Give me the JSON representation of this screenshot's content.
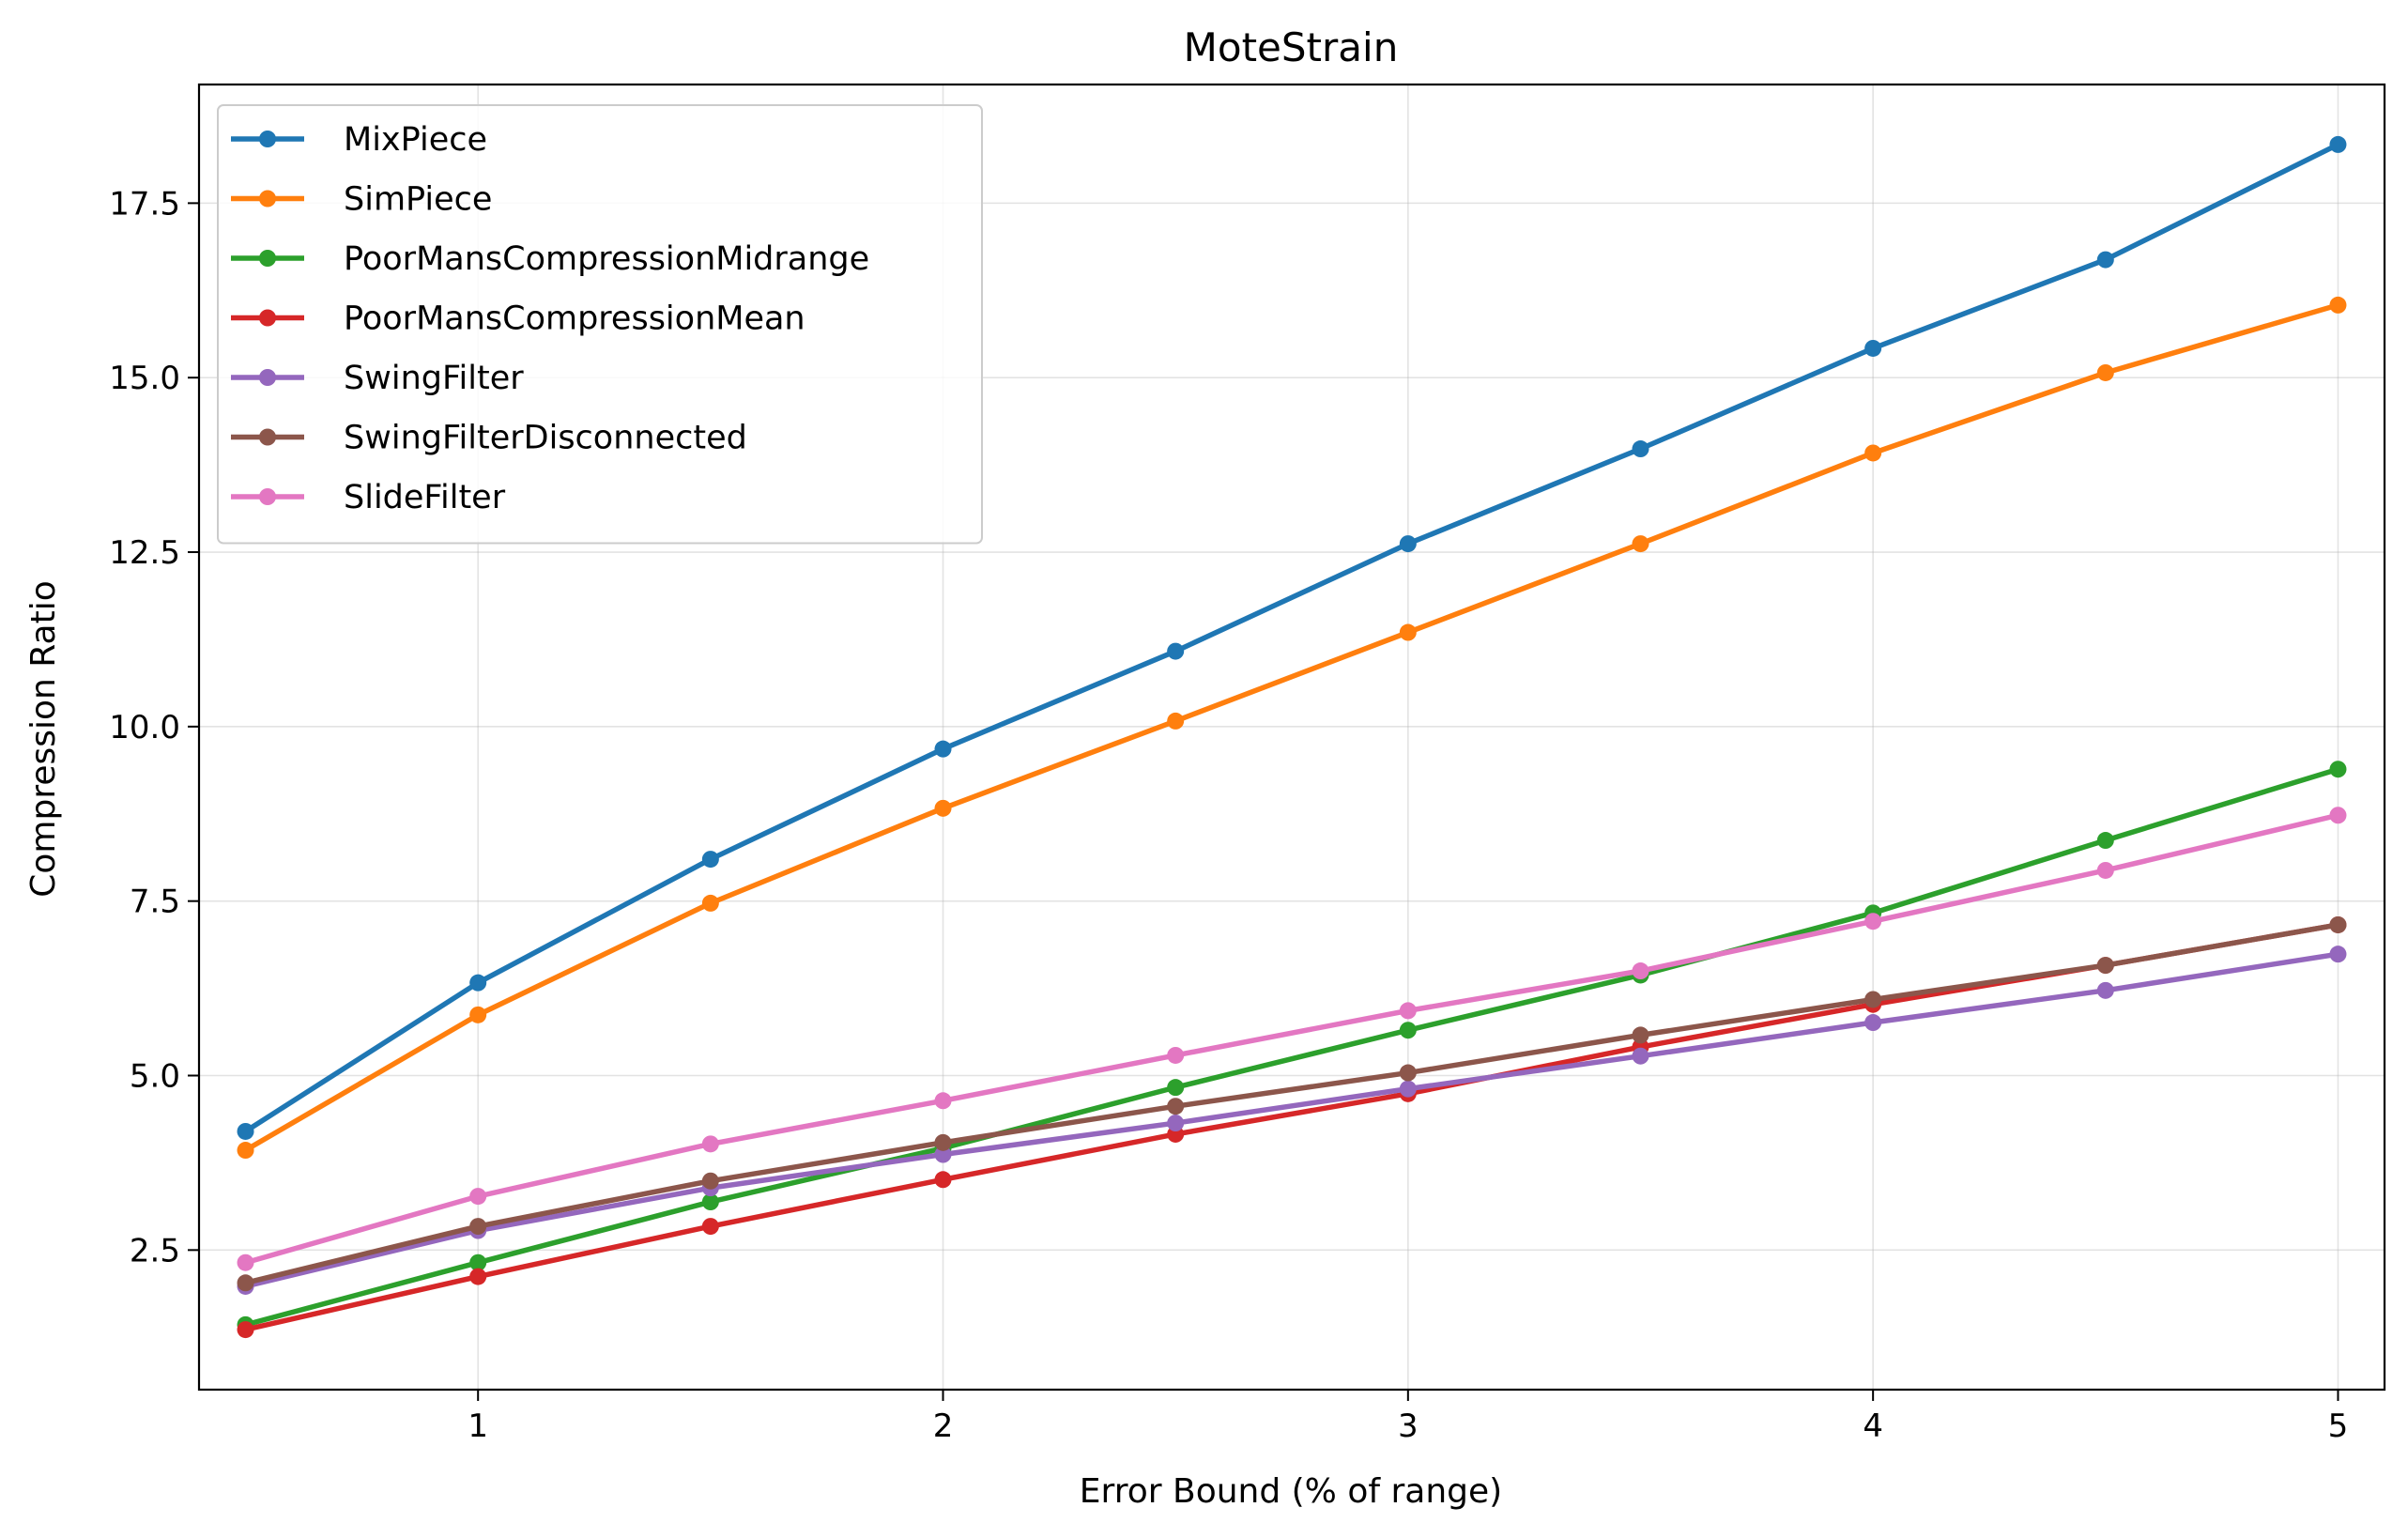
{
  "chart_data": {
    "type": "line",
    "title": "MoteStrain",
    "xlabel": "Error Bound (% of range)",
    "ylabel": "Compression Ratio",
    "xlim": [
      0.4,
      5.1
    ],
    "ylim": [
      0.5,
      19.2
    ],
    "xticks": [
      1,
      2,
      3,
      4,
      5
    ],
    "yticks": [
      2.5,
      5.0,
      7.5,
      10.0,
      12.5,
      15.0,
      17.5
    ],
    "ytick_labels": [
      "2.5",
      "5.0",
      "7.5",
      "10.0",
      "12.5",
      "15.0",
      "17.5"
    ],
    "grid": true,
    "legend_position": "top-left",
    "x": [
      0.5,
      1.0,
      1.5,
      2.0,
      2.5,
      3.0,
      3.5,
      4.0,
      4.5,
      5.0
    ],
    "series": [
      {
        "name": "MixPiece",
        "color": "#1f77b4",
        "values": [
          4.2,
          6.33,
          8.1,
          9.68,
          11.08,
          12.62,
          13.98,
          15.42,
          16.69,
          18.34
        ]
      },
      {
        "name": "SimPiece",
        "color": "#ff7f0e",
        "values": [
          3.93,
          5.87,
          7.47,
          8.83,
          10.08,
          11.35,
          12.62,
          13.92,
          15.07,
          16.04
        ]
      },
      {
        "name": "PoorMansCompressionMidrange",
        "color": "#2ca02c",
        "values": [
          1.43,
          2.32,
          3.19,
          3.96,
          4.83,
          5.65,
          6.44,
          7.33,
          8.37,
          9.39
        ]
      },
      {
        "name": "PoorMansCompressionMean",
        "color": "#d62728",
        "values": [
          1.36,
          2.12,
          2.84,
          3.51,
          4.16,
          4.74,
          5.41,
          6.02,
          6.58,
          7.16
        ]
      },
      {
        "name": "SwingFilter",
        "color": "#9467bd",
        "values": [
          1.98,
          2.78,
          3.39,
          3.87,
          4.32,
          4.81,
          5.28,
          5.76,
          6.22,
          6.74
        ]
      },
      {
        "name": "SwingFilterDisconnected",
        "color": "#8c564b",
        "values": [
          2.03,
          2.84,
          3.49,
          4.04,
          4.56,
          5.04,
          5.58,
          6.09,
          6.58,
          7.16
        ]
      },
      {
        "name": "SlideFilter",
        "color": "#e377c2",
        "values": [
          2.32,
          3.27,
          4.02,
          4.64,
          5.29,
          5.93,
          6.5,
          7.21,
          7.94,
          8.73
        ]
      }
    ]
  }
}
